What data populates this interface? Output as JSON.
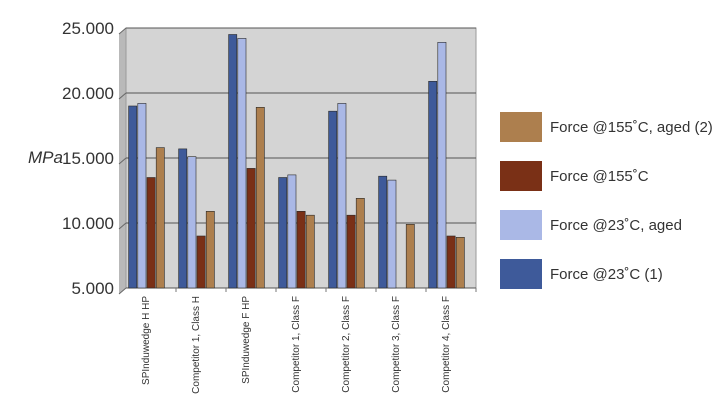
{
  "chart_data": {
    "type": "bar",
    "title": "",
    "xlabel": "",
    "ylabel": "MPa",
    "ylim": [
      5000,
      25000
    ],
    "yticks": [
      5000,
      10000,
      15000,
      20000,
      25000
    ],
    "ytick_labels": [
      "5.000",
      "10.000",
      "15.000",
      "20.000",
      "25.000"
    ],
    "grid": true,
    "legend_position": "right",
    "categories": [
      "SPInduwedge H HP",
      "Competitor 1, Class H",
      "SPInduwedge F HP",
      "Competitor 1, Class F",
      "Competitor 2, Class F",
      "Competitor 3, Class F",
      "Competitor 4, Class F"
    ],
    "series": [
      {
        "name": "Force @23˚C (1)",
        "color": "#3e5a9a",
        "values": [
          19000,
          15700,
          24500,
          13500,
          18600,
          13600,
          20900
        ]
      },
      {
        "name": "Force @23˚C, aged",
        "color": "#aab8e6",
        "values": [
          19200,
          15100,
          24200,
          13700,
          19200,
          13300,
          23900
        ]
      },
      {
        "name": "Force @155˚C",
        "color": "#7a3016",
        "values": [
          13500,
          9000,
          14200,
          10900,
          10600,
          null,
          9000
        ]
      },
      {
        "name": "Force @155˚C, aged (2)",
        "color": "#ad7f4e",
        "values": [
          15800,
          10900,
          18900,
          10600,
          11900,
          9900,
          8900
        ]
      }
    ],
    "legend_order": [
      3,
      2,
      1,
      0
    ]
  }
}
